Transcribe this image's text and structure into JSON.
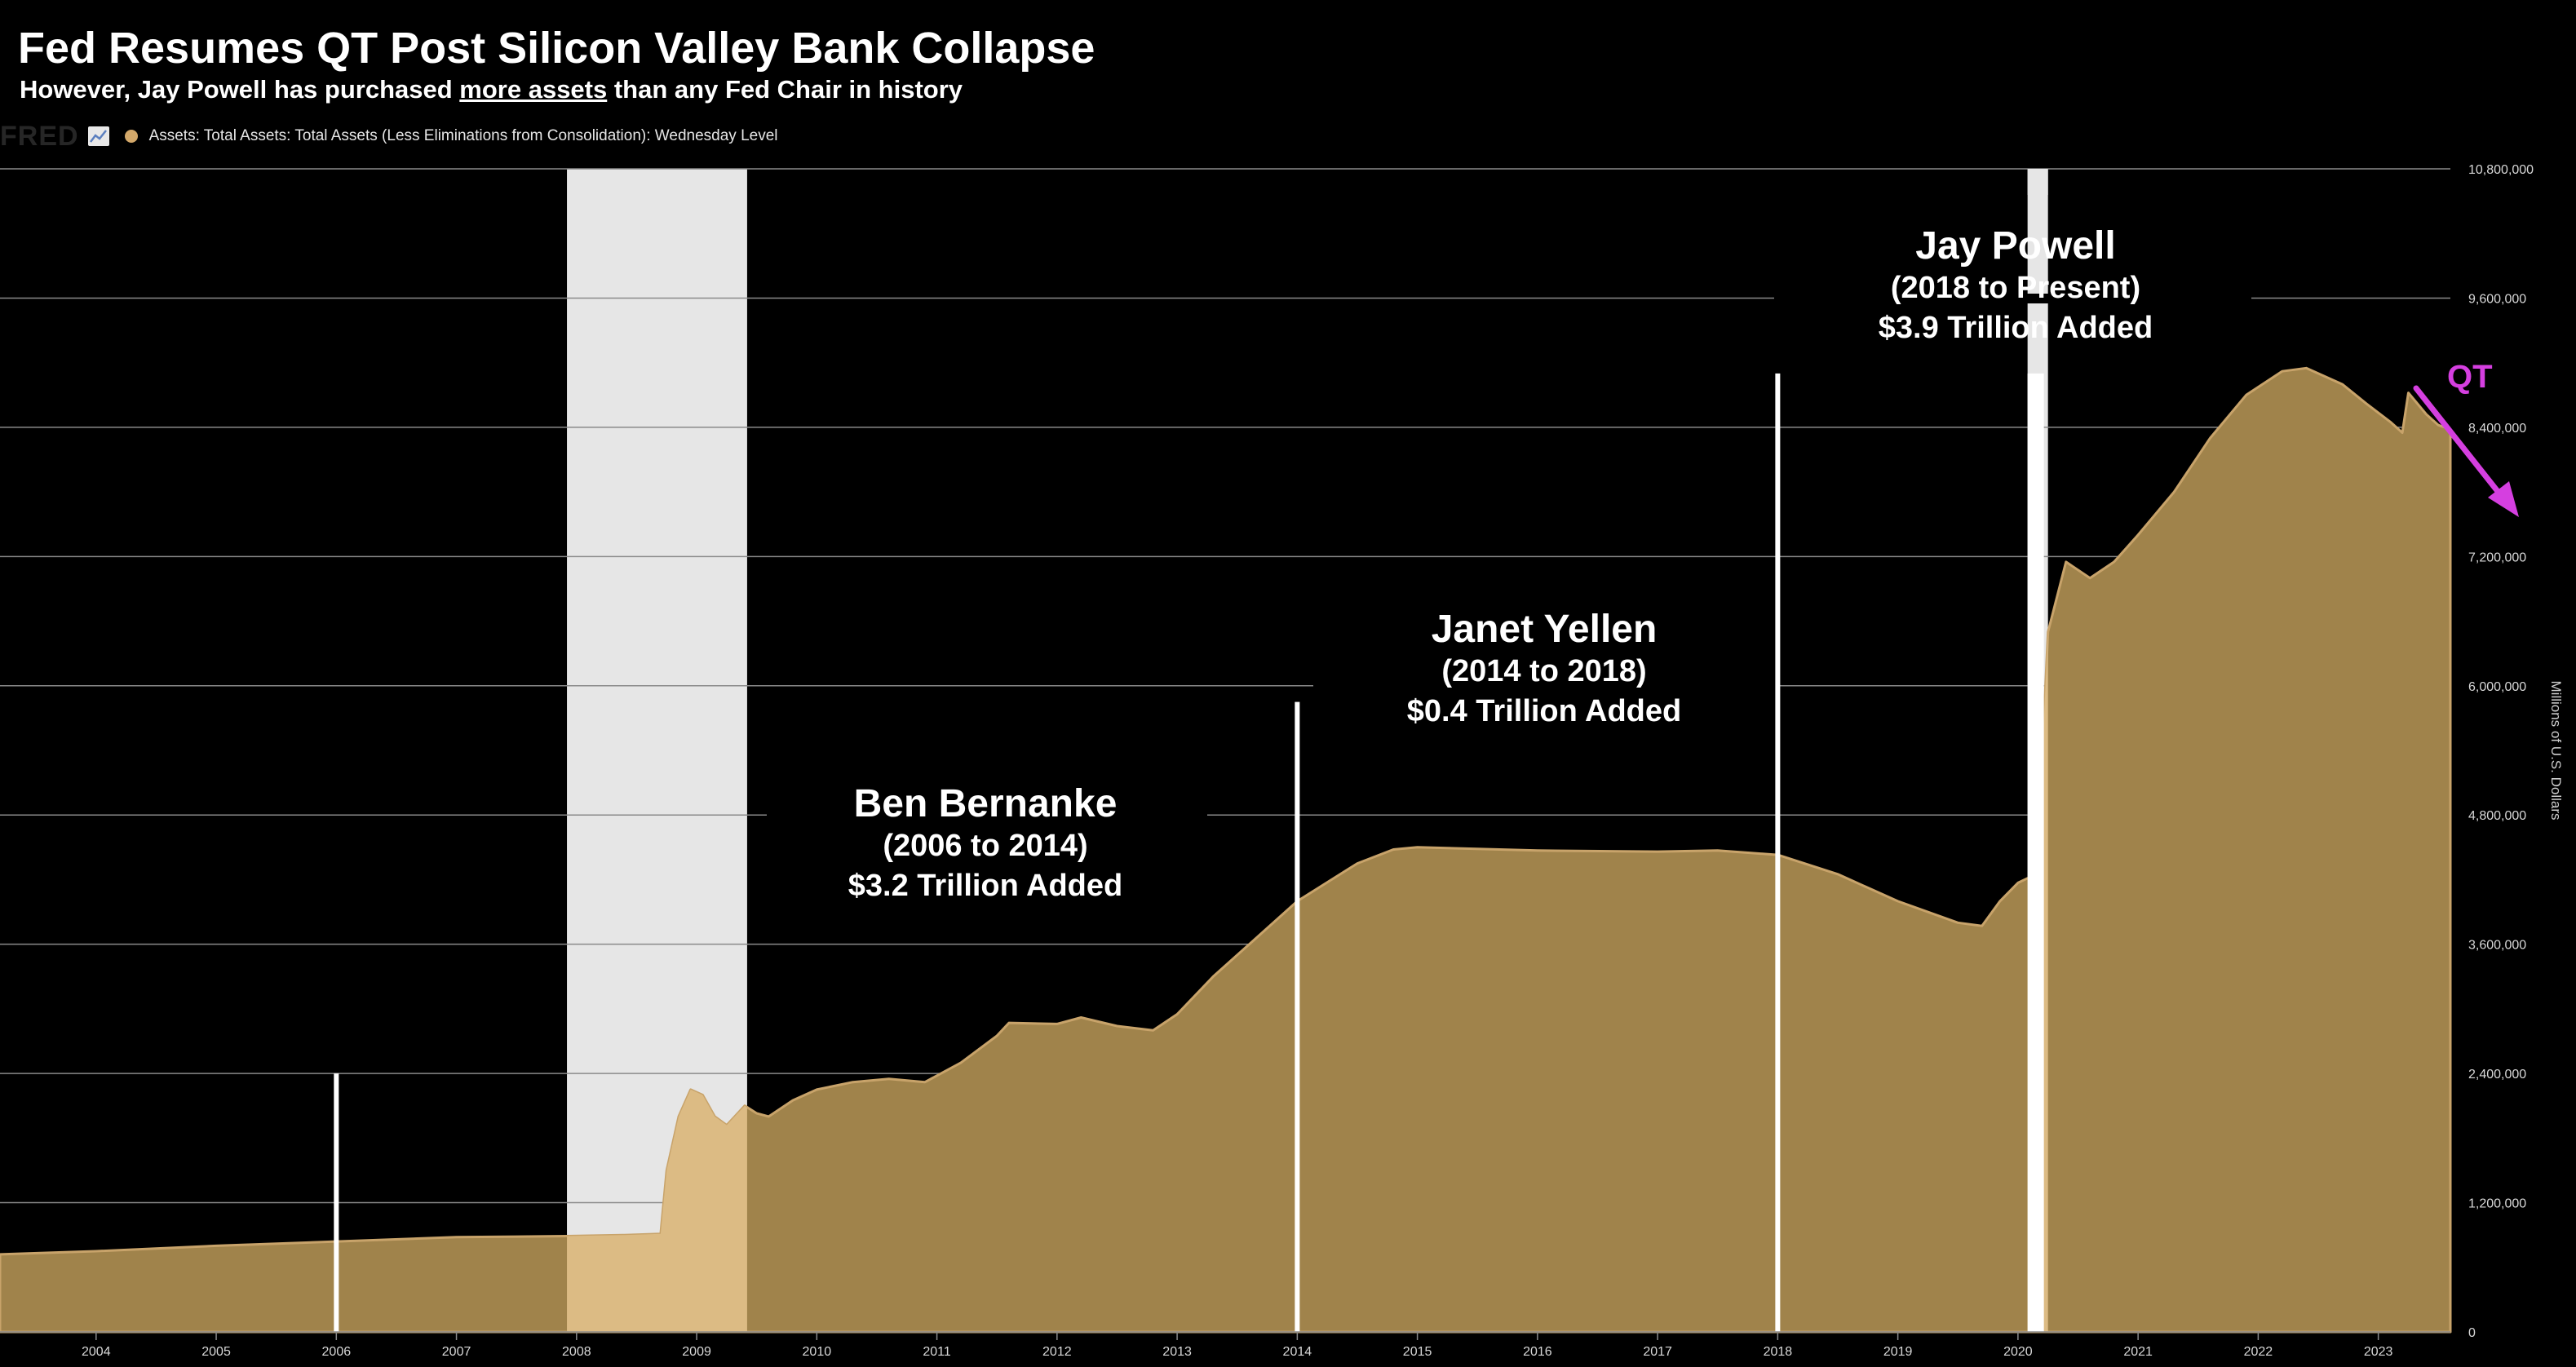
{
  "header": {
    "title": "Fed Resumes QT Post Silicon Valley Bank Collapse",
    "subtitle_pre": "However, Jay Powell has purchased ",
    "subtitle_underlined": "more assets",
    "subtitle_post": " than any Fed Chair in history"
  },
  "legend": {
    "logo": "FRED",
    "logo_icon": "line-chart-icon",
    "series_label": "Assets: Total Assets: Total Assets (Less Eliminations from Consolidation): Wednesday Level"
  },
  "annotations": {
    "bernanke": {
      "name": "Ben Bernanke",
      "years": "(2006 to 2014)",
      "amount": "$3.2 Trillion Added"
    },
    "yellen": {
      "name": "Janet Yellen",
      "years": "(2014 to 2018)",
      "amount": "$0.4 Trillion Added"
    },
    "powell": {
      "name": "Jay Powell",
      "years": "(2018 to Present)",
      "amount": "$3.9 Trillion Added"
    },
    "qt": "QT"
  },
  "colors": {
    "background": "#000000",
    "area_fill": "#a0834b",
    "area_line": "#c8a36a",
    "recession_shade": "#e6e6e6",
    "recession_area": "#dcbb84",
    "qt_accent": "#d53fe0"
  },
  "chart_data": {
    "type": "area",
    "title": "Fed Resumes QT Post Silicon Valley Bank Collapse",
    "ylabel": "Millions of U.S. Dollars",
    "xlim": [
      2003.2,
      2023.6
    ],
    "ylim": [
      0,
      10800000
    ],
    "grid": true,
    "y_ticks": [
      {
        "value": 0,
        "label": "0"
      },
      {
        "value": 1200000,
        "label": "1,200,000"
      },
      {
        "value": 2400000,
        "label": "2,400,000"
      },
      {
        "value": 3600000,
        "label": "3,600,000"
      },
      {
        "value": 4800000,
        "label": "4,800,000"
      },
      {
        "value": 6000000,
        "label": "6,000,000"
      },
      {
        "value": 7200000,
        "label": "7,200,000"
      },
      {
        "value": 8400000,
        "label": "8,400,000"
      },
      {
        "value": 9600000,
        "label": "9,600,000"
      },
      {
        "value": 10800000,
        "label": "10,800,000"
      }
    ],
    "x_ticks": [
      {
        "value": 2004,
        "label": "2004"
      },
      {
        "value": 2005,
        "label": "2005"
      },
      {
        "value": 2006,
        "label": "2006"
      },
      {
        "value": 2007,
        "label": "2007"
      },
      {
        "value": 2008,
        "label": "2008"
      },
      {
        "value": 2009,
        "label": "2009"
      },
      {
        "value": 2010,
        "label": "2010"
      },
      {
        "value": 2011,
        "label": "2011"
      },
      {
        "value": 2012,
        "label": "2012"
      },
      {
        "value": 2013,
        "label": "2013"
      },
      {
        "value": 2014,
        "label": "2014"
      },
      {
        "value": 2015,
        "label": "2015"
      },
      {
        "value": 2016,
        "label": "2016"
      },
      {
        "value": 2017,
        "label": "2017"
      },
      {
        "value": 2018,
        "label": "2018"
      },
      {
        "value": 2019,
        "label": "2019"
      },
      {
        "value": 2020,
        "label": "2020"
      },
      {
        "value": 2021,
        "label": "2021"
      },
      {
        "value": 2022,
        "label": "2022"
      },
      {
        "value": 2023,
        "label": "2023"
      }
    ],
    "recessions": [
      [
        2007.92,
        2009.42
      ],
      [
        2020.08,
        2020.25
      ]
    ],
    "chair_markers": [
      {
        "x": 2006.0,
        "top": 2400000
      },
      {
        "x": 2014.0,
        "top": 5850000
      },
      {
        "x": 2018.0,
        "top": 8900000
      },
      {
        "x": 2020.08,
        "top": 8900000
      }
    ],
    "series": [
      {
        "name": "Assets: Total Assets: Total Assets (Less Eliminations from Consolidation): Wednesday Level",
        "points": [
          [
            2003.2,
            720000
          ],
          [
            2004,
            750000
          ],
          [
            2005,
            800000
          ],
          [
            2006,
            840000
          ],
          [
            2007,
            880000
          ],
          [
            2007.92,
            890000
          ],
          [
            2008.4,
            900000
          ],
          [
            2008.7,
            910000
          ],
          [
            2008.75,
            1500000
          ],
          [
            2008.85,
            2000000
          ],
          [
            2008.95,
            2250000
          ],
          [
            2009.05,
            2200000
          ],
          [
            2009.15,
            2000000
          ],
          [
            2009.25,
            1920000
          ],
          [
            2009.4,
            2100000
          ],
          [
            2009.5,
            2030000
          ],
          [
            2009.6,
            2000000
          ],
          [
            2009.8,
            2150000
          ],
          [
            2010.0,
            2250000
          ],
          [
            2010.3,
            2320000
          ],
          [
            2010.6,
            2350000
          ],
          [
            2010.9,
            2320000
          ],
          [
            2011.2,
            2500000
          ],
          [
            2011.5,
            2750000
          ],
          [
            2011.6,
            2870000
          ],
          [
            2012.0,
            2860000
          ],
          [
            2012.2,
            2920000
          ],
          [
            2012.5,
            2840000
          ],
          [
            2012.8,
            2800000
          ],
          [
            2013.0,
            2950000
          ],
          [
            2013.3,
            3300000
          ],
          [
            2013.6,
            3600000
          ],
          [
            2014.0,
            4000000
          ],
          [
            2014.5,
            4350000
          ],
          [
            2014.8,
            4480000
          ],
          [
            2015,
            4500000
          ],
          [
            2016,
            4470000
          ],
          [
            2017,
            4460000
          ],
          [
            2017.5,
            4470000
          ],
          [
            2018.0,
            4430000
          ],
          [
            2018.5,
            4250000
          ],
          [
            2019.0,
            4000000
          ],
          [
            2019.5,
            3800000
          ],
          [
            2019.7,
            3770000
          ],
          [
            2019.85,
            4000000
          ],
          [
            2020.0,
            4170000
          ],
          [
            2020.15,
            4250000
          ],
          [
            2020.2,
            5300000
          ],
          [
            2020.25,
            6500000
          ],
          [
            2020.4,
            7150000
          ],
          [
            2020.6,
            7000000
          ],
          [
            2020.8,
            7150000
          ],
          [
            2021.0,
            7400000
          ],
          [
            2021.3,
            7800000
          ],
          [
            2021.6,
            8300000
          ],
          [
            2021.9,
            8700000
          ],
          [
            2022.2,
            8920000
          ],
          [
            2022.4,
            8950000
          ],
          [
            2022.7,
            8800000
          ],
          [
            2022.9,
            8620000
          ],
          [
            2023.1,
            8450000
          ],
          [
            2023.2,
            8350000
          ],
          [
            2023.25,
            8720000
          ],
          [
            2023.4,
            8520000
          ],
          [
            2023.5,
            8420000
          ],
          [
            2023.6,
            8380000
          ]
        ]
      }
    ]
  }
}
